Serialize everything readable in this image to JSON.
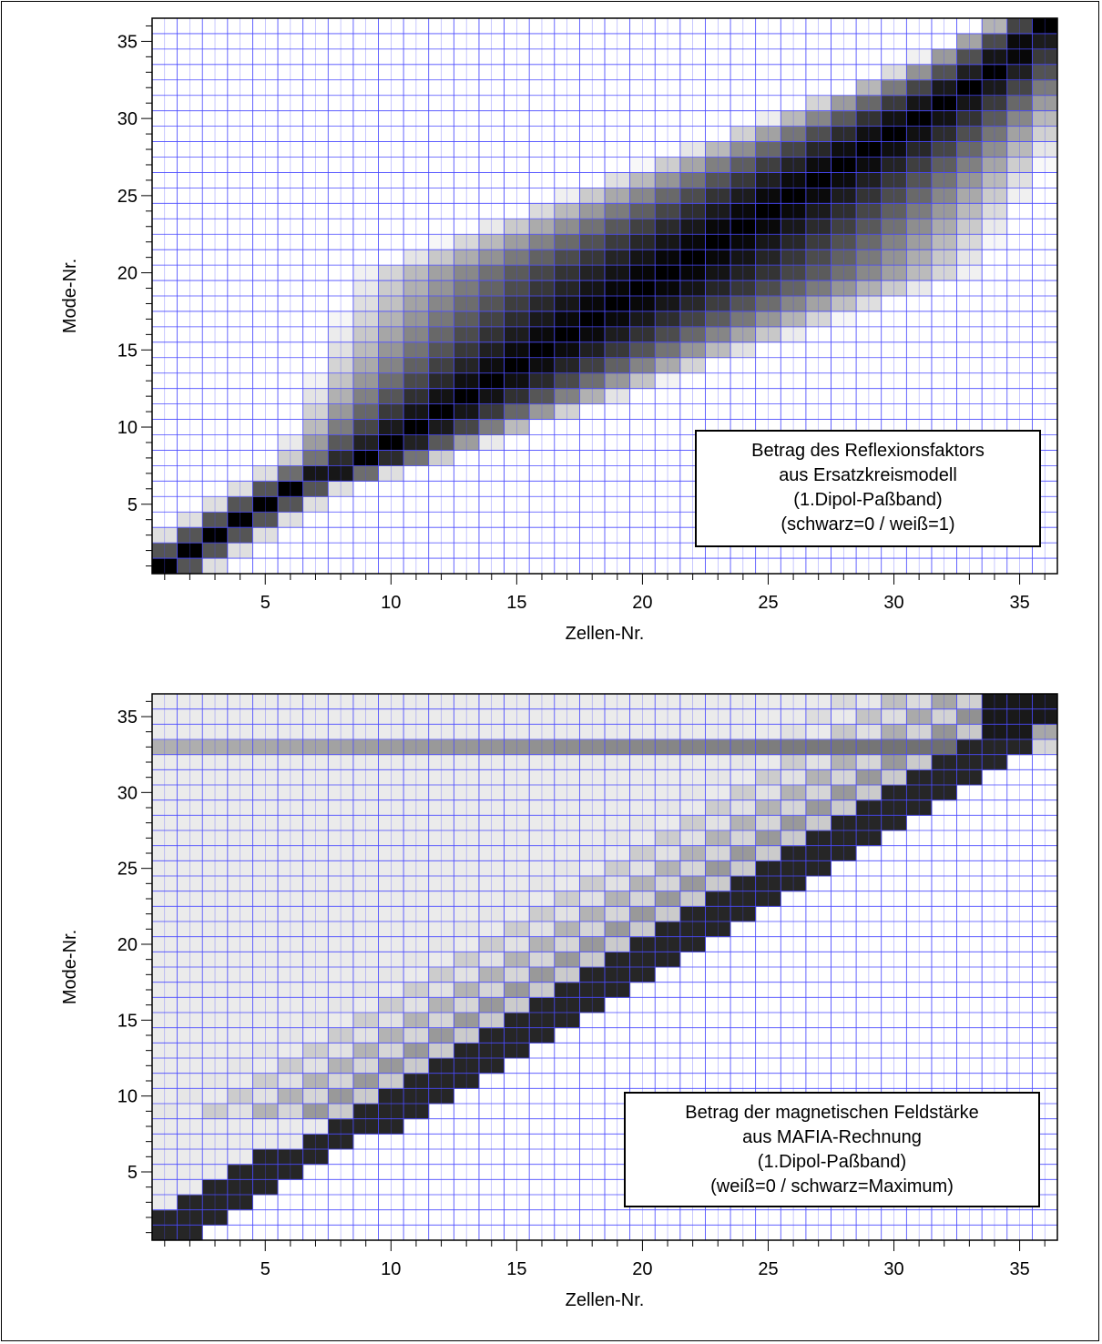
{
  "chart_data": [
    {
      "type": "heatmap",
      "xlabel": "Zellen-Nr.",
      "ylabel": "Mode-Nr.",
      "xlim": [
        0.5,
        36.5
      ],
      "ylim": [
        0.5,
        36.5
      ],
      "xticks": [
        5,
        10,
        15,
        20,
        25,
        30,
        35
      ],
      "yticks": [
        5,
        10,
        15,
        20,
        25,
        30,
        35
      ],
      "grid": true,
      "grid_color": "#4a4aff",
      "colorscale": "black = 0, white = 1",
      "annotation": [
        "Betrag des Reflexionsfaktors",
        "aus Ersatzkreismodell",
        "(1.Dipol-Paßband)",
        "(schwarz=0 / weiß=1)"
      ],
      "annotation_position": "bottom-right",
      "rows": 36,
      "cols": 36,
      "model": "darkness centered on a diagonal ridge; mode m peaks at cell ~ m for low modes, broad band in the middle, narrow at the top-right",
      "ridge": [
        [
          1,
          1
        ],
        [
          2,
          2
        ],
        [
          3,
          3
        ],
        [
          4,
          4
        ],
        [
          5,
          5
        ],
        [
          6,
          6
        ],
        [
          8,
          9
        ],
        [
          10,
          11
        ],
        [
          12,
          13
        ],
        [
          15,
          16
        ],
        [
          18,
          19
        ],
        [
          21,
          22
        ],
        [
          25,
          26
        ],
        [
          29,
          30
        ],
        [
          33,
          34
        ],
        [
          36,
          36
        ]
      ]
    },
    {
      "type": "heatmap",
      "xlabel": "Zellen-Nr.",
      "ylabel": "Mode-Nr.",
      "xlim": [
        0.5,
        36.5
      ],
      "ylim": [
        0.5,
        36.5
      ],
      "xticks": [
        5,
        10,
        15,
        20,
        25,
        30,
        35
      ],
      "yticks": [
        5,
        10,
        15,
        20,
        25,
        30,
        35
      ],
      "grid": true,
      "grid_color": "#4a4aff",
      "colorscale": "white = 0, black = maximum",
      "annotation": [
        "Betrag der magnetischen Feldstärke",
        "aus MAFIA-Rechnung",
        "(1.Dipol-Paßband)",
        "(weiß=0 / schwarz=Maximum)"
      ],
      "annotation_position": "bottom-right",
      "rows": 36,
      "cols": 36,
      "model": "dark diagonal standing-wave band with checkerboard interior, horizontal band at mode 33, light fan toward the left",
      "ridge": [
        [
          1,
          1
        ],
        [
          2,
          2
        ],
        [
          3,
          3
        ],
        [
          4,
          4
        ],
        [
          5,
          5
        ],
        [
          6,
          6
        ],
        [
          8,
          9
        ],
        [
          10,
          11
        ],
        [
          12,
          13
        ],
        [
          15,
          16
        ],
        [
          18,
          19
        ],
        [
          21,
          22
        ],
        [
          25,
          26
        ],
        [
          29,
          30
        ],
        [
          33,
          34
        ],
        [
          36,
          36
        ]
      ]
    }
  ]
}
